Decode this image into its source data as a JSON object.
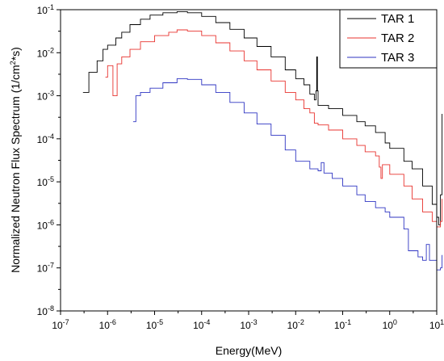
{
  "chart_data": {
    "type": "line",
    "xlabel": "Energy(MeV)",
    "ylabel": "Normalized Neutron Flux Spectrum (1/cm²*s)",
    "ylabel_parts": {
      "pre": "Normalized Neutron Flux Spectrum (1/cm",
      "sup": "2",
      "post": "*s)"
    },
    "x_scale": "log",
    "y_scale": "log",
    "xlim": [
      1e-07,
      10.0
    ],
    "ylim": [
      1e-08,
      0.1
    ],
    "x_ticks": [
      {
        "base": "10",
        "exp": "-7",
        "value": 1e-07
      },
      {
        "base": "10",
        "exp": "-6",
        "value": 1e-06
      },
      {
        "base": "10",
        "exp": "-5",
        "value": 1e-05
      },
      {
        "base": "10",
        "exp": "-4",
        "value": 0.0001
      },
      {
        "base": "10",
        "exp": "-3",
        "value": 0.001
      },
      {
        "base": "10",
        "exp": "-2",
        "value": 0.01
      },
      {
        "base": "10",
        "exp": "-1",
        "value": 0.1
      },
      {
        "base": "10",
        "exp": "0",
        "value": 1.0
      },
      {
        "base": "10",
        "exp": "1",
        "value": 10.0
      }
    ],
    "y_ticks": [
      {
        "base": "10",
        "exp": "-8",
        "value": 1e-08
      },
      {
        "base": "10",
        "exp": "-7",
        "value": 1e-07
      },
      {
        "base": "10",
        "exp": "-6",
        "value": 1e-06
      },
      {
        "base": "10",
        "exp": "-5",
        "value": 1e-05
      },
      {
        "base": "10",
        "exp": "-4",
        "value": 0.0001
      },
      {
        "base": "10",
        "exp": "-3",
        "value": 0.001
      },
      {
        "base": "10",
        "exp": "-2",
        "value": 0.01
      },
      {
        "base": "10",
        "exp": "-1",
        "value": 0.1
      }
    ],
    "legend": "top-right",
    "grid": false,
    "series": [
      {
        "name": "TAR 1",
        "color": "#000000",
        "points": [
          [
            3e-07,
            0.0012
          ],
          [
            4e-07,
            0.0035
          ],
          [
            6e-07,
            0.0065
          ],
          [
            8e-07,
            0.012
          ],
          [
            1e-06,
            0.015
          ],
          [
            1.5e-06,
            0.022
          ],
          [
            2e-06,
            0.03
          ],
          [
            3e-06,
            0.045
          ],
          [
            5e-06,
            0.06
          ],
          [
            8e-06,
            0.075
          ],
          [
            1.5e-05,
            0.085
          ],
          [
            3e-05,
            0.09
          ],
          [
            5e-05,
            0.085
          ],
          [
            0.0001,
            0.07
          ],
          [
            0.0002,
            0.05
          ],
          [
            0.0004,
            0.035
          ],
          [
            0.0008,
            0.022
          ],
          [
            0.0015,
            0.014
          ],
          [
            0.003,
            0.008
          ],
          [
            0.006,
            0.004
          ],
          [
            0.01,
            0.0025
          ],
          [
            0.015,
            0.0018
          ],
          [
            0.02,
            0.0011
          ],
          [
            0.025,
            0.0008
          ],
          [
            0.027,
            0.0013
          ],
          [
            0.028,
            0.008
          ],
          [
            0.029,
            0.0013
          ],
          [
            0.03,
            0.0006
          ],
          [
            0.05,
            0.0005
          ],
          [
            0.1,
            0.00035
          ],
          [
            0.2,
            0.00025
          ],
          [
            0.3,
            0.0002
          ],
          [
            0.5,
            0.00014
          ],
          [
            0.8,
            8e-05
          ],
          [
            1.0,
            6e-05
          ],
          [
            2.0,
            3e-05
          ],
          [
            3.0,
            2e-05
          ],
          [
            5.0,
            8e-06
          ],
          [
            8.0,
            3e-06
          ],
          [
            10.0,
            1.5e-06
          ],
          [
            11.0,
            1e-06
          ],
          [
            12.0,
            5e-06
          ],
          [
            13.0,
            0.00038
          ]
        ]
      },
      {
        "name": "TAR 2",
        "color": "#e8332f",
        "points": [
          [
            9e-07,
            0.0027
          ],
          [
            1e-06,
            0.005
          ],
          [
            1.2e-06,
            0.005
          ],
          [
            1.3e-06,
            0.001
          ],
          [
            1.5e-06,
            0.001
          ],
          [
            1.6e-06,
            0.0055
          ],
          [
            2e-06,
            0.008
          ],
          [
            3e-06,
            0.012
          ],
          [
            5e-06,
            0.018
          ],
          [
            1e-05,
            0.025
          ],
          [
            2e-05,
            0.03
          ],
          [
            3e-05,
            0.034
          ],
          [
            5e-05,
            0.032
          ],
          [
            0.0001,
            0.025
          ],
          [
            0.0002,
            0.017
          ],
          [
            0.0004,
            0.011
          ],
          [
            0.0008,
            0.0065
          ],
          [
            0.0015,
            0.004
          ],
          [
            0.003,
            0.0022
          ],
          [
            0.006,
            0.0012
          ],
          [
            0.01,
            0.0008
          ],
          [
            0.015,
            0.0005
          ],
          [
            0.02,
            0.0004
          ],
          [
            0.025,
            0.00023
          ],
          [
            0.03,
            0.00021
          ],
          [
            0.05,
            0.00016
          ],
          [
            0.1,
            0.0001
          ],
          [
            0.2,
            7e-05
          ],
          [
            0.3,
            5e-05
          ],
          [
            0.5,
            4e-05
          ],
          [
            0.6,
            2.2e-05
          ],
          [
            0.65,
            1.2e-05
          ],
          [
            0.7,
            2.5e-05
          ],
          [
            1.0,
            1.5e-05
          ],
          [
            2.0,
            8e-06
          ],
          [
            3.0,
            4e-06
          ],
          [
            5.0,
            2e-06
          ],
          [
            8.0,
            1.2e-06
          ],
          [
            10.0,
            9e-07
          ],
          [
            12.0,
            1.2e-06
          ],
          [
            13.0,
            4e-06
          ]
        ]
      },
      {
        "name": "TAR 3",
        "color": "#2f35c2",
        "points": [
          [
            3.5e-06,
            0.00025
          ],
          [
            4e-06,
            0.001
          ],
          [
            5e-06,
            0.0012
          ],
          [
            8e-06,
            0.0015
          ],
          [
            1.5e-05,
            0.002
          ],
          [
            3e-05,
            0.0025
          ],
          [
            5e-05,
            0.0024
          ],
          [
            0.0001,
            0.0018
          ],
          [
            0.0002,
            0.0012
          ],
          [
            0.0004,
            0.0007
          ],
          [
            0.0008,
            0.0004
          ],
          [
            0.0015,
            0.00022
          ],
          [
            0.003,
            0.00012
          ],
          [
            0.006,
            5.5e-05
          ],
          [
            0.01,
            3e-05
          ],
          [
            0.02,
            2e-05
          ],
          [
            0.03,
            1.8e-05
          ],
          [
            0.035,
            2.8e-05
          ],
          [
            0.04,
            1.6e-05
          ],
          [
            0.06,
            1.2e-05
          ],
          [
            0.1,
            8e-06
          ],
          [
            0.2,
            5e-06
          ],
          [
            0.3,
            3.5e-06
          ],
          [
            0.5,
            2.5e-06
          ],
          [
            0.8,
            2e-06
          ],
          [
            1.0,
            1.5e-06
          ],
          [
            2.0,
            8e-07
          ],
          [
            2.5,
            2.5e-07
          ],
          [
            3.0,
            2.5e-07
          ],
          [
            4.0,
            1.8e-07
          ],
          [
            5.0,
            1.5e-07
          ],
          [
            6.0,
            3.5e-07
          ],
          [
            7.0,
            1.5e-07
          ],
          [
            10.0,
            9e-08
          ],
          [
            12.0,
            1e-07
          ],
          [
            13.0,
            2e-07
          ]
        ]
      }
    ]
  }
}
